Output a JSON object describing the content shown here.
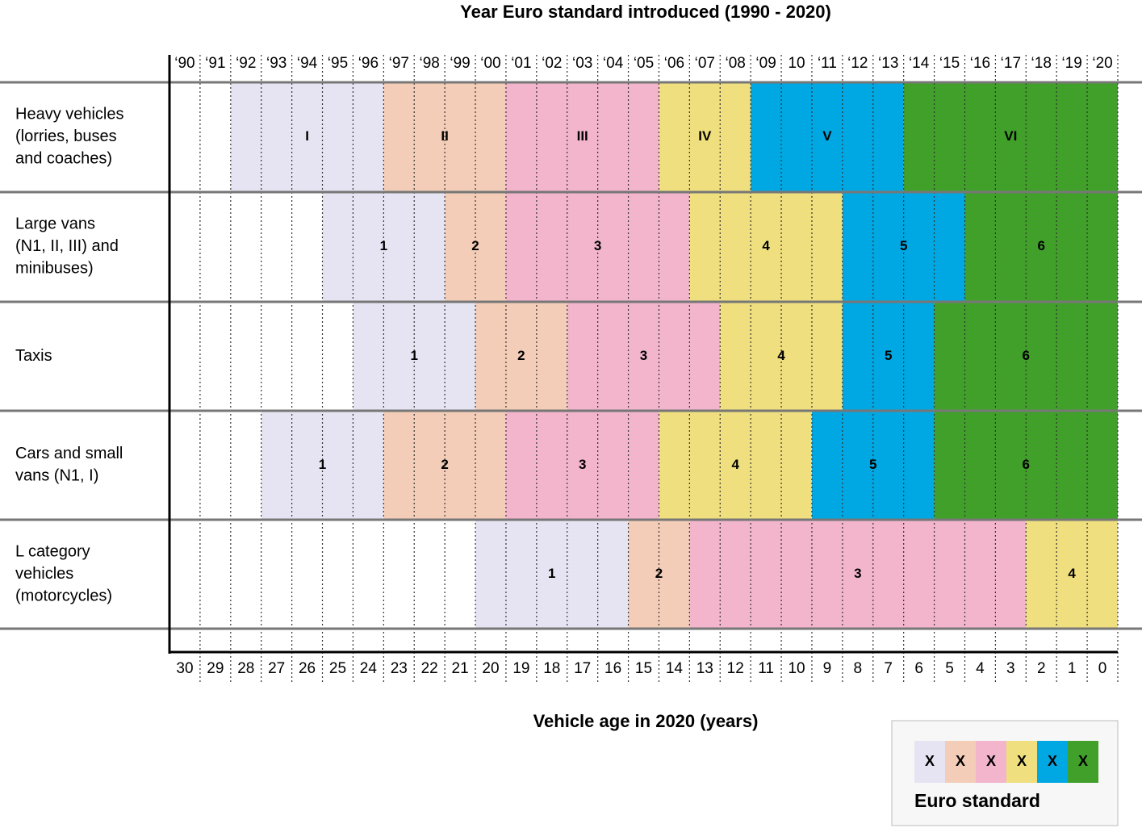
{
  "title": "Year Euro standard introduced (1990 - 2020)",
  "x_label": "Vehicle age in 2020 (years)",
  "years": [
    "‘90",
    "‘91",
    "‘92",
    "‘93",
    "‘94",
    "‘95",
    "‘96",
    "‘97",
    "‘98",
    "‘99",
    "‘00",
    "‘01",
    "‘02",
    "‘03",
    "‘04",
    "‘05",
    "‘06",
    "‘07",
    "‘08",
    "‘09",
    "10",
    "‘11",
    "‘12",
    "‘13",
    "‘14",
    "‘15",
    "‘16",
    "‘17",
    "‘18",
    "‘19",
    "‘20"
  ],
  "ages": [
    "30",
    "29",
    "28",
    "27",
    "26",
    "25",
    "24",
    "23",
    "22",
    "21",
    "20",
    "19",
    "18",
    "17",
    "16",
    "15",
    "14",
    "13",
    "12",
    "11",
    "10",
    "9",
    "8",
    "7",
    "6",
    "5",
    "4",
    "3",
    "2",
    "1",
    "0"
  ],
  "rows": [
    {
      "label": [
        "Heavy vehicles",
        "(lorries, buses",
        "and coaches)"
      ],
      "segments": [
        {
          "label": "I",
          "start": 1992,
          "end": 1996,
          "color": "#e6e4f2"
        },
        {
          "label": "II",
          "start": 1997,
          "end": 2000,
          "color": "#f3cdb7"
        },
        {
          "label": "III",
          "start": 2001,
          "end": 2005,
          "color": "#f2b5cc"
        },
        {
          "label": "IV",
          "start": 2006,
          "end": 2008,
          "color": "#efdf7e"
        },
        {
          "label": "V",
          "start": 2009,
          "end": 2013,
          "color": "#00a8e3"
        },
        {
          "label": "VI",
          "start": 2014,
          "end": 2020,
          "color": "#40a02a"
        }
      ]
    },
    {
      "label": [
        "Large vans",
        "(N1, II, III) and",
        "minibuses)"
      ],
      "segments": [
        {
          "label": "1",
          "start": 1995,
          "end": 1998,
          "color": "#e6e4f2"
        },
        {
          "label": "2",
          "start": 1999,
          "end": 2000,
          "color": "#f3cdb7"
        },
        {
          "label": "3",
          "start": 2001,
          "end": 2006,
          "color": "#f2b5cc"
        },
        {
          "label": "4",
          "start": 2007,
          "end": 2011,
          "color": "#efdf7e"
        },
        {
          "label": "5",
          "start": 2012,
          "end": 2015,
          "color": "#00a8e3"
        },
        {
          "label": "6",
          "start": 2016,
          "end": 2020,
          "color": "#40a02a"
        }
      ]
    },
    {
      "label": [
        "Taxis"
      ],
      "segments": [
        {
          "label": "1",
          "start": 1996,
          "end": 1999,
          "color": "#e6e4f2"
        },
        {
          "label": "2",
          "start": 2000,
          "end": 2002,
          "color": "#f3cdb7"
        },
        {
          "label": "3",
          "start": 2003,
          "end": 2007,
          "color": "#f2b5cc"
        },
        {
          "label": "4",
          "start": 2008,
          "end": 2011,
          "color": "#efdf7e"
        },
        {
          "label": "5",
          "start": 2012,
          "end": 2014,
          "color": "#00a8e3"
        },
        {
          "label": "6",
          "start": 2015,
          "end": 2020,
          "color": "#40a02a"
        }
      ]
    },
    {
      "label": [
        "Cars and small",
        "vans (N1, I)"
      ],
      "segments": [
        {
          "label": "1",
          "start": 1993,
          "end": 1996,
          "color": "#e6e4f2"
        },
        {
          "label": "2",
          "start": 1997,
          "end": 2000,
          "color": "#f3cdb7"
        },
        {
          "label": "3",
          "start": 2001,
          "end": 2005,
          "color": "#f2b5cc"
        },
        {
          "label": "4",
          "start": 2006,
          "end": 2010,
          "color": "#efdf7e"
        },
        {
          "label": "5",
          "start": 2011,
          "end": 2014,
          "color": "#00a8e3"
        },
        {
          "label": "6",
          "start": 2015,
          "end": 2020,
          "color": "#40a02a"
        }
      ]
    },
    {
      "label": [
        "L category",
        "vehicles",
        "(motorcycles)"
      ],
      "segments": [
        {
          "label": "1",
          "start": 2000,
          "end": 2004,
          "color": "#e6e4f2"
        },
        {
          "label": "2",
          "start": 2005,
          "end": 2006,
          "color": "#f3cdb7"
        },
        {
          "label": "3",
          "start": 2007,
          "end": 2017,
          "color": "#f2b5cc"
        },
        {
          "label": "4",
          "start": 2018,
          "end": 2020,
          "color": "#efdf7e"
        }
      ]
    }
  ],
  "legend": {
    "title": "Euro standard",
    "swatches": [
      {
        "label": "X",
        "color": "#e6e4f2"
      },
      {
        "label": "X",
        "color": "#f3cdb7"
      },
      {
        "label": "X",
        "color": "#f2b5cc"
      },
      {
        "label": "X",
        "color": "#efdf7e"
      },
      {
        "label": "X",
        "color": "#00a8e3"
      },
      {
        "label": "X",
        "color": "#40a02a"
      }
    ]
  }
}
